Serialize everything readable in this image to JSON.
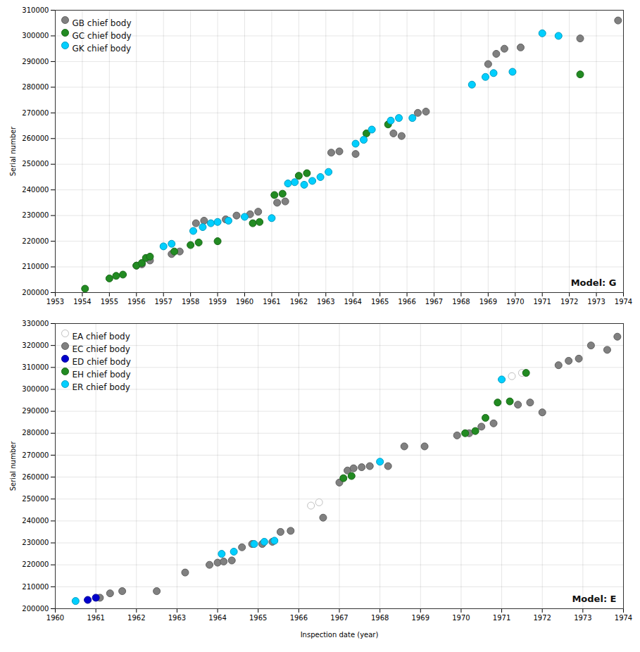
{
  "chart_data": [
    {
      "type": "scatter",
      "annotations": [
        "Model: G"
      ],
      "ylabel": "Serial number",
      "xlim": [
        1953,
        1974
      ],
      "xticks": [
        1953,
        1954,
        1955,
        1956,
        1957,
        1958,
        1959,
        1960,
        1961,
        1962,
        1963,
        1964,
        1965,
        1966,
        1967,
        1968,
        1969,
        1970,
        1971,
        1972,
        1973,
        1974
      ],
      "ylim": [
        200000,
        310000
      ],
      "yticks": [
        200000,
        210000,
        220000,
        230000,
        240000,
        250000,
        260000,
        270000,
        280000,
        290000,
        300000,
        310000
      ],
      "grid": true,
      "legend": "upper left",
      "series": [
        {
          "name": "GB chief body",
          "color": "#808080",
          "x": [
            1956.0,
            1956.2,
            1956.5,
            1957.3,
            1957.6,
            1958.2,
            1958.5,
            1959.3,
            1959.7,
            1960.2,
            1960.5,
            1961.2,
            1961.5,
            1963.2,
            1963.5,
            1964.1,
            1965.5,
            1965.8,
            1966.4,
            1966.7,
            1969.0,
            1969.3,
            1969.6,
            1970.2,
            1972.4,
            1973.8
          ],
          "values": [
            210500,
            211000,
            212500,
            215000,
            216000,
            227000,
            228000,
            228500,
            230000,
            230500,
            231500,
            235000,
            235500,
            254500,
            255000,
            254000,
            262000,
            261000,
            270000,
            270500,
            289000,
            293000,
            295000,
            295500,
            299000,
            306000
          ]
        },
        {
          "name": "GC chief body",
          "color": "#228B22",
          "x": [
            1954.1,
            1955.0,
            1955.25,
            1955.5,
            1956.0,
            1956.2,
            1956.35,
            1956.5,
            1957.4,
            1958.0,
            1958.3,
            1959.0,
            1960.3,
            1960.55,
            1961.1,
            1961.4,
            1962.0,
            1962.3,
            1964.5,
            1965.3,
            1972.4
          ],
          "values": [
            201500,
            205500,
            206500,
            207000,
            210500,
            211500,
            213500,
            214000,
            216000,
            218500,
            219500,
            220000,
            227000,
            227500,
            238000,
            238500,
            245500,
            246500,
            262000,
            265500,
            285000
          ]
        },
        {
          "name": "GK chief body",
          "color": "#00CFFF",
          "x": [
            1957.0,
            1957.3,
            1958.1,
            1958.45,
            1958.75,
            1959.0,
            1959.4,
            1960.0,
            1961.0,
            1961.6,
            1961.85,
            1962.2,
            1962.5,
            1962.8,
            1963.1,
            1964.1,
            1964.4,
            1964.7,
            1965.4,
            1965.7,
            1966.2,
            1968.4,
            1968.9,
            1969.2,
            1969.9,
            1971.0,
            1971.6
          ],
          "values": [
            218000,
            219000,
            224000,
            225500,
            227000,
            227500,
            228000,
            229500,
            229000,
            242500,
            243000,
            242000,
            243500,
            245000,
            247000,
            258000,
            259500,
            263500,
            267000,
            268000,
            268000,
            281000,
            284000,
            285500,
            286000,
            301000,
            300000
          ]
        }
      ]
    },
    {
      "type": "scatter",
      "annotations": [
        "Model: E"
      ],
      "xlabel": "Inspection date (year)",
      "ylabel": "Serial number",
      "xlim": [
        1960,
        1974
      ],
      "xticks": [
        1960,
        1961,
        1962,
        1963,
        1964,
        1965,
        1966,
        1967,
        1968,
        1969,
        1970,
        1971,
        1972,
        1973,
        1974
      ],
      "ylim": [
        200000,
        330000
      ],
      "yticks": [
        200000,
        210000,
        220000,
        230000,
        240000,
        250000,
        260000,
        270000,
        280000,
        290000,
        300000,
        310000,
        320000,
        330000
      ],
      "grid": true,
      "legend": "upper left",
      "series": [
        {
          "name": "EA chief body",
          "color": "#FFFFFF",
          "x": [
            1966.3,
            1966.5,
            1971.25,
            1971.5
          ],
          "values": [
            247000,
            248500,
            306000,
            307500
          ]
        },
        {
          "name": "EC chief body",
          "color": "#808080",
          "x": [
            1961.1,
            1961.35,
            1961.65,
            1962.5,
            1963.2,
            1963.8,
            1964.0,
            1964.15,
            1964.35,
            1964.6,
            1964.85,
            1965.1,
            1965.35,
            1965.55,
            1965.8,
            1966.6,
            1967.0,
            1967.2,
            1967.35,
            1967.55,
            1967.75,
            1968.2,
            1968.6,
            1969.1,
            1969.9,
            1970.2,
            1970.5,
            1970.8,
            1971.4,
            1971.7,
            1972.0,
            1972.4,
            1972.65,
            1972.9,
            1973.2,
            1973.6,
            1973.85
          ],
          "values": [
            205000,
            207000,
            208000,
            208000,
            216500,
            220000,
            221000,
            221500,
            222000,
            228000,
            229500,
            229500,
            230500,
            235000,
            235500,
            241500,
            257500,
            263000,
            264000,
            264500,
            265000,
            265000,
            274000,
            274000,
            279000,
            280000,
            283000,
            284500,
            293000,
            294000,
            289500,
            311000,
            313000,
            314000,
            320000,
            318000,
            324000
          ]
        },
        {
          "name": "ED chief body",
          "color": "#0000CC",
          "x": [
            1960.8,
            1961.0
          ],
          "values": [
            204000,
            205000
          ]
        },
        {
          "name": "EH chief body",
          "color": "#228B22",
          "x": [
            1967.1,
            1967.3,
            1970.1,
            1970.35,
            1970.6,
            1970.9,
            1971.2,
            1971.6
          ],
          "values": [
            259500,
            260500,
            280000,
            281000,
            287000,
            294000,
            294500,
            307500
          ]
        },
        {
          "name": "ER chief body",
          "color": "#00CFFF",
          "x": [
            1960.5,
            1964.1,
            1964.4,
            1964.9,
            1965.15,
            1965.4,
            1968.0,
            1971.0
          ],
          "values": [
            203500,
            225000,
            226000,
            229500,
            230500,
            231000,
            267000,
            304500
          ]
        }
      ]
    }
  ]
}
